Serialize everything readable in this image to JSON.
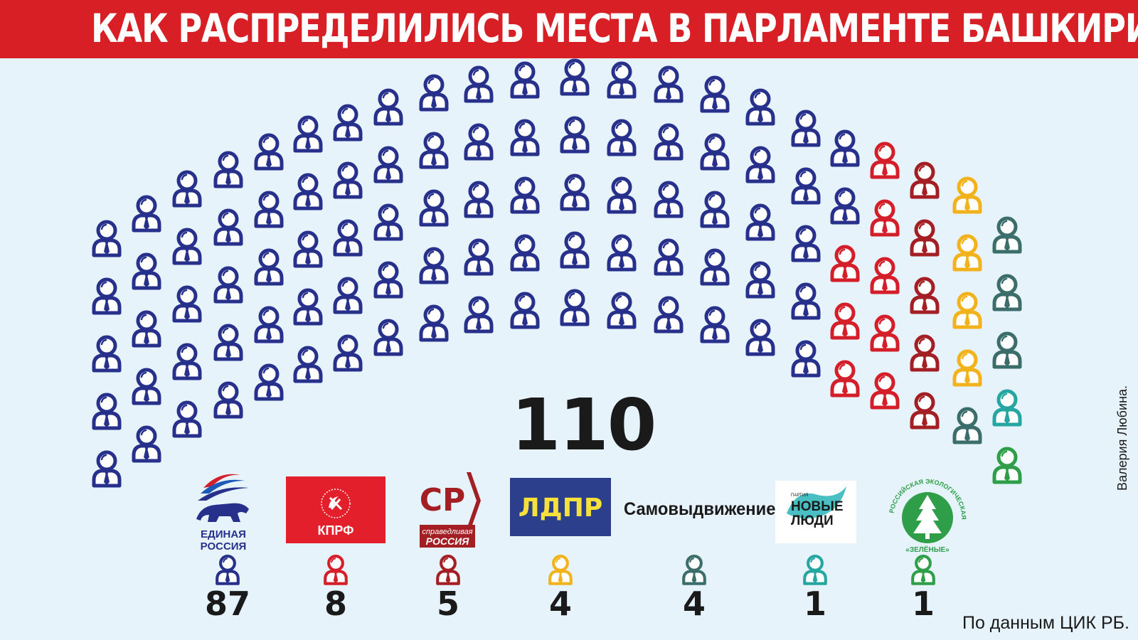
{
  "title": "КАК РАСПРЕДЕЛИЛИСЬ МЕСТА В ПАРЛАМЕНТЕ БАШКИРИИ",
  "total_label": "110",
  "source": "По данным ЦИК РБ.",
  "author": "Валерия Любина.",
  "colors": {
    "title_bar": "#d81f26",
    "background": "#e6f3fb"
  },
  "logos": {
    "er": {
      "line1": "ЕДИНАЯ",
      "line2": "РОССИЯ"
    },
    "kprf": {
      "text": "КПРФ"
    },
    "sr": {
      "mark": "СР",
      "line1": "справедливая",
      "line2": "РОССИЯ"
    },
    "ldpr": {
      "text": "ЛДПР"
    },
    "selfnom": {
      "text": "Самовыдвижение"
    },
    "nl": {
      "small": "ПАРТИЯ",
      "line1": "НОВЫЕ",
      "line2": "ЛЮДИ"
    },
    "green": {
      "ring": "РОССИЙСКАЯ ЭКОЛОГИЧЕСКАЯ ПАРТИЯ",
      "name": "«ЗЕЛЁНЫЕ»"
    }
  },
  "chart_data": {
    "type": "parliament",
    "total": 110,
    "categories": [
      "Единая Россия",
      "КПРФ",
      "Справедливая Россия",
      "ЛДПР",
      "Самовыдвижение",
      "Новые люди",
      "Зелёные"
    ],
    "values": [
      87,
      8,
      5,
      4,
      4,
      1,
      1
    ],
    "value_labels": [
      "87",
      "8",
      "5",
      "4",
      "4",
      "1",
      "1"
    ],
    "colors": [
      "#27318b",
      "#d41e2a",
      "#a31f24",
      "#f2b21c",
      "#3b6d6a",
      "#25a6a0",
      "#2e9e48"
    ]
  }
}
